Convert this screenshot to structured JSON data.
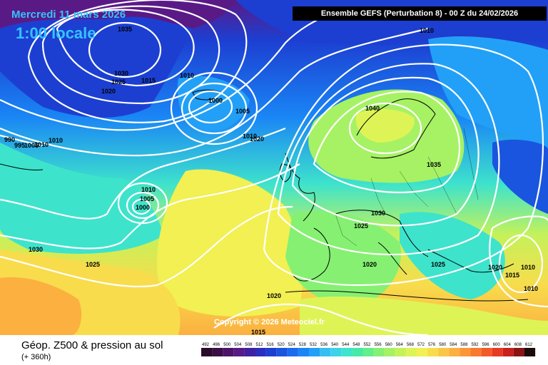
{
  "header": {
    "date": "Mercredi 11 mars 2026",
    "time": "1:00 locale",
    "model": "Ensemble GEFS  (Perturbation 8)  -  00 Z du 24/02/2026"
  },
  "copyright": "Copyright © 2026 Meteociel.fr",
  "legend": {
    "title": "Géop. Z500 & pression au sol",
    "subtitle": "(+ 360h)",
    "scale_values": [
      "492",
      "496",
      "500",
      "504",
      "508",
      "512",
      "516",
      "520",
      "524",
      "528",
      "532",
      "536",
      "540",
      "544",
      "548",
      "552",
      "556",
      "560",
      "564",
      "568",
      "572",
      "576",
      "580",
      "584",
      "588",
      "592",
      "596",
      "600",
      "604",
      "608",
      "612"
    ],
    "scale_colors": [
      "#2a0a2a",
      "#3b0f45",
      "#4b1466",
      "#5a1a86",
      "#4020a0",
      "#2a2dbd",
      "#1c3fd2",
      "#1a55e0",
      "#1a6cee",
      "#1a86f5",
      "#22a0f7",
      "#36bdf3",
      "#3cd3e8",
      "#3ee3cc",
      "#45eaa8",
      "#62ee88",
      "#86f072",
      "#a6f264",
      "#c4f25a",
      "#def456",
      "#f2f052",
      "#f8dc4c",
      "#fac646",
      "#fbb040",
      "#fb9638",
      "#f87a30",
      "#f25a28",
      "#e63a22",
      "#c8201e",
      "#8a1414",
      "#1a0a0a"
    ]
  },
  "isobars": [
    {
      "label": "1035",
      "kind": "high"
    },
    {
      "label": "1030"
    },
    {
      "label": "1025"
    },
    {
      "label": "1020"
    },
    {
      "label": "1015"
    },
    {
      "label": "1010"
    },
    {
      "label": "1000",
      "kind": "low"
    },
    {
      "label": "1005"
    },
    {
      "label": "1010"
    },
    {
      "label": "1020"
    },
    {
      "label": "1010"
    },
    {
      "label": "1005"
    },
    {
      "label": "1000",
      "kind": "low"
    },
    {
      "label": "1030"
    },
    {
      "label": "1025"
    },
    {
      "label": "1020"
    },
    {
      "label": "1015"
    },
    {
      "label": "1010"
    },
    {
      "label": "1040",
      "kind": "high"
    },
    {
      "label": "1035"
    },
    {
      "label": "1030"
    },
    {
      "label": "1025"
    },
    {
      "label": "1020"
    },
    {
      "label": "1025"
    },
    {
      "label": "1020"
    },
    {
      "label": "1015"
    },
    {
      "label": "1010"
    },
    {
      "label": "1010"
    },
    {
      "label": "1010"
    },
    {
      "label": "1010"
    },
    {
      "label": "990"
    },
    {
      "label": "995"
    },
    {
      "label": "1005"
    }
  ]
}
